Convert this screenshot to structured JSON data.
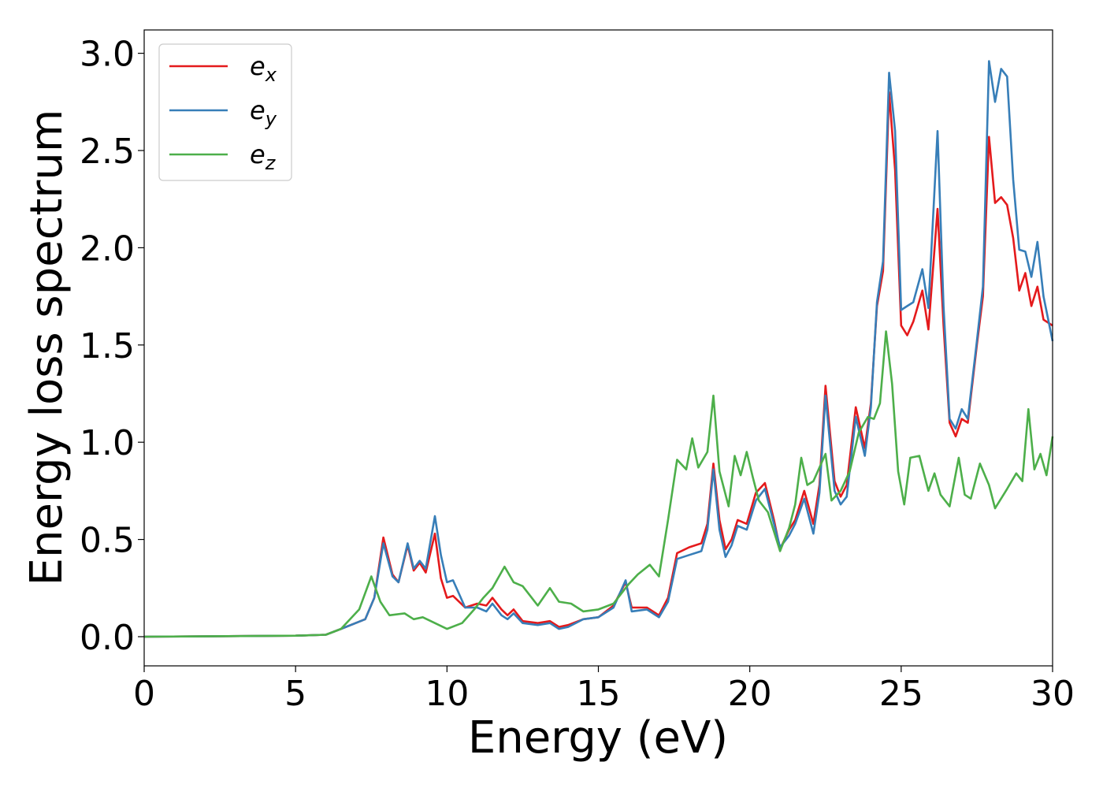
{
  "chart_data": {
    "type": "line",
    "title": "",
    "xlabel": "Energy (eV)",
    "ylabel": "Energy loss spectrum",
    "xlim": [
      0,
      30
    ],
    "ylim": [
      -0.15,
      3.12
    ],
    "xticks": [
      0,
      5,
      10,
      15,
      20,
      25,
      30
    ],
    "xtick_labels": [
      "0",
      "5",
      "10",
      "15",
      "20",
      "25",
      "30"
    ],
    "yticks": [
      0.0,
      0.5,
      1.0,
      1.5,
      2.0,
      2.5,
      3.0
    ],
    "ytick_labels": [
      "0.0",
      "0.5",
      "1.0",
      "1.5",
      "2.0",
      "2.5",
      "3.0"
    ],
    "grid": false,
    "legend_position": "top-left",
    "series": [
      {
        "name": "e_x",
        "legend_base": "e",
        "legend_sub": "x",
        "color": "#e41a1c",
        "points": [
          [
            0,
            0
          ],
          [
            5,
            0.005
          ],
          [
            6,
            0.01
          ],
          [
            6.5,
            0.04
          ],
          [
            7.3,
            0.09
          ],
          [
            7.6,
            0.2
          ],
          [
            7.9,
            0.51
          ],
          [
            8.2,
            0.32
          ],
          [
            8.4,
            0.28
          ],
          [
            8.7,
            0.47
          ],
          [
            8.9,
            0.34
          ],
          [
            9.1,
            0.38
          ],
          [
            9.3,
            0.33
          ],
          [
            9.6,
            0.53
          ],
          [
            9.8,
            0.3
          ],
          [
            10,
            0.2
          ],
          [
            10.2,
            0.21
          ],
          [
            10.6,
            0.15
          ],
          [
            11,
            0.17
          ],
          [
            11.3,
            0.16
          ],
          [
            11.5,
            0.2
          ],
          [
            11.8,
            0.14
          ],
          [
            12,
            0.11
          ],
          [
            12.2,
            0.14
          ],
          [
            12.5,
            0.08
          ],
          [
            13,
            0.07
          ],
          [
            13.4,
            0.08
          ],
          [
            13.7,
            0.05
          ],
          [
            14,
            0.06
          ],
          [
            14.5,
            0.09
          ],
          [
            15,
            0.1
          ],
          [
            15.5,
            0.16
          ],
          [
            15.9,
            0.28
          ],
          [
            16.1,
            0.15
          ],
          [
            16.6,
            0.15
          ],
          [
            17,
            0.11
          ],
          [
            17.3,
            0.2
          ],
          [
            17.6,
            0.43
          ],
          [
            18,
            0.46
          ],
          [
            18.4,
            0.48
          ],
          [
            18.6,
            0.58
          ],
          [
            18.8,
            0.89
          ],
          [
            19,
            0.6
          ],
          [
            19.2,
            0.45
          ],
          [
            19.4,
            0.5
          ],
          [
            19.6,
            0.6
          ],
          [
            19.9,
            0.58
          ],
          [
            20.2,
            0.74
          ],
          [
            20.5,
            0.79
          ],
          [
            20.8,
            0.6
          ],
          [
            21,
            0.45
          ],
          [
            21.3,
            0.55
          ],
          [
            21.5,
            0.6
          ],
          [
            21.8,
            0.75
          ],
          [
            22.1,
            0.58
          ],
          [
            22.3,
            0.78
          ],
          [
            22.5,
            1.29
          ],
          [
            22.8,
            0.8
          ],
          [
            23,
            0.72
          ],
          [
            23.2,
            0.78
          ],
          [
            23.5,
            1.18
          ],
          [
            23.8,
            0.97
          ],
          [
            24,
            1.2
          ],
          [
            24.2,
            1.7
          ],
          [
            24.4,
            1.88
          ],
          [
            24.6,
            2.8
          ],
          [
            24.8,
            2.4
          ],
          [
            25,
            1.6
          ],
          [
            25.2,
            1.55
          ],
          [
            25.4,
            1.62
          ],
          [
            25.7,
            1.78
          ],
          [
            25.9,
            1.58
          ],
          [
            26.2,
            2.2
          ],
          [
            26.4,
            1.6
          ],
          [
            26.6,
            1.1
          ],
          [
            26.8,
            1.03
          ],
          [
            27,
            1.12
          ],
          [
            27.2,
            1.1
          ],
          [
            27.5,
            1.5
          ],
          [
            27.7,
            1.75
          ],
          [
            27.9,
            2.57
          ],
          [
            28.1,
            2.23
          ],
          [
            28.3,
            2.26
          ],
          [
            28.5,
            2.22
          ],
          [
            28.7,
            2.05
          ],
          [
            28.9,
            1.78
          ],
          [
            29.1,
            1.87
          ],
          [
            29.3,
            1.7
          ],
          [
            29.5,
            1.8
          ],
          [
            29.7,
            1.63
          ],
          [
            30,
            1.6
          ]
        ]
      },
      {
        "name": "e_y",
        "legend_base": "e",
        "legend_sub": "y",
        "color": "#377eb8",
        "points": [
          [
            0,
            0
          ],
          [
            5,
            0.005
          ],
          [
            6,
            0.01
          ],
          [
            6.5,
            0.04
          ],
          [
            7.3,
            0.09
          ],
          [
            7.6,
            0.2
          ],
          [
            7.9,
            0.48
          ],
          [
            8.2,
            0.31
          ],
          [
            8.4,
            0.28
          ],
          [
            8.7,
            0.48
          ],
          [
            8.9,
            0.35
          ],
          [
            9.1,
            0.39
          ],
          [
            9.3,
            0.35
          ],
          [
            9.6,
            0.62
          ],
          [
            9.8,
            0.42
          ],
          [
            10,
            0.28
          ],
          [
            10.2,
            0.29
          ],
          [
            10.6,
            0.15
          ],
          [
            11,
            0.15
          ],
          [
            11.3,
            0.13
          ],
          [
            11.5,
            0.17
          ],
          [
            11.8,
            0.11
          ],
          [
            12,
            0.09
          ],
          [
            12.2,
            0.12
          ],
          [
            12.5,
            0.07
          ],
          [
            13,
            0.06
          ],
          [
            13.4,
            0.07
          ],
          [
            13.7,
            0.04
          ],
          [
            14,
            0.05
          ],
          [
            14.5,
            0.09
          ],
          [
            15,
            0.1
          ],
          [
            15.5,
            0.15
          ],
          [
            15.9,
            0.29
          ],
          [
            16.1,
            0.13
          ],
          [
            16.6,
            0.14
          ],
          [
            17,
            0.1
          ],
          [
            17.3,
            0.18
          ],
          [
            17.6,
            0.4
          ],
          [
            18,
            0.42
          ],
          [
            18.4,
            0.44
          ],
          [
            18.6,
            0.55
          ],
          [
            18.8,
            0.86
          ],
          [
            19,
            0.55
          ],
          [
            19.2,
            0.41
          ],
          [
            19.4,
            0.47
          ],
          [
            19.6,
            0.57
          ],
          [
            19.9,
            0.55
          ],
          [
            20.2,
            0.7
          ],
          [
            20.5,
            0.76
          ],
          [
            20.8,
            0.58
          ],
          [
            21,
            0.46
          ],
          [
            21.3,
            0.52
          ],
          [
            21.5,
            0.58
          ],
          [
            21.8,
            0.71
          ],
          [
            22.1,
            0.53
          ],
          [
            22.3,
            0.74
          ],
          [
            22.5,
            1.24
          ],
          [
            22.8,
            0.75
          ],
          [
            23,
            0.68
          ],
          [
            23.2,
            0.72
          ],
          [
            23.5,
            1.13
          ],
          [
            23.8,
            0.93
          ],
          [
            24,
            1.18
          ],
          [
            24.2,
            1.72
          ],
          [
            24.4,
            1.93
          ],
          [
            24.6,
            2.9
          ],
          [
            24.8,
            2.6
          ],
          [
            25,
            1.68
          ],
          [
            25.2,
            1.7
          ],
          [
            25.4,
            1.72
          ],
          [
            25.7,
            1.89
          ],
          [
            25.9,
            1.69
          ],
          [
            26.2,
            2.6
          ],
          [
            26.4,
            1.7
          ],
          [
            26.6,
            1.12
          ],
          [
            26.8,
            1.07
          ],
          [
            27,
            1.17
          ],
          [
            27.2,
            1.12
          ],
          [
            27.5,
            1.52
          ],
          [
            27.7,
            1.8
          ],
          [
            27.9,
            2.96
          ],
          [
            28.1,
            2.75
          ],
          [
            28.3,
            2.92
          ],
          [
            28.5,
            2.88
          ],
          [
            28.7,
            2.35
          ],
          [
            28.9,
            1.99
          ],
          [
            29.1,
            1.98
          ],
          [
            29.3,
            1.85
          ],
          [
            29.5,
            2.03
          ],
          [
            29.7,
            1.75
          ],
          [
            30,
            1.52
          ]
        ]
      },
      {
        "name": "e_z",
        "legend_base": "e",
        "legend_sub": "z",
        "color": "#4daf4a",
        "points": [
          [
            0,
            0
          ],
          [
            5,
            0.005
          ],
          [
            6,
            0.01
          ],
          [
            6.5,
            0.04
          ],
          [
            7.1,
            0.14
          ],
          [
            7.5,
            0.31
          ],
          [
            7.8,
            0.18
          ],
          [
            8.1,
            0.11
          ],
          [
            8.6,
            0.12
          ],
          [
            8.9,
            0.09
          ],
          [
            9.2,
            0.1
          ],
          [
            9.6,
            0.07
          ],
          [
            10,
            0.04
          ],
          [
            10.5,
            0.07
          ],
          [
            10.9,
            0.14
          ],
          [
            11.2,
            0.2
          ],
          [
            11.5,
            0.25
          ],
          [
            11.9,
            0.36
          ],
          [
            12.2,
            0.28
          ],
          [
            12.5,
            0.26
          ],
          [
            12.8,
            0.2
          ],
          [
            13,
            0.16
          ],
          [
            13.4,
            0.25
          ],
          [
            13.7,
            0.18
          ],
          [
            14.1,
            0.17
          ],
          [
            14.5,
            0.13
          ],
          [
            15,
            0.14
          ],
          [
            15.5,
            0.17
          ],
          [
            16,
            0.27
          ],
          [
            16.3,
            0.32
          ],
          [
            16.7,
            0.37
          ],
          [
            17,
            0.31
          ],
          [
            17.3,
            0.6
          ],
          [
            17.6,
            0.91
          ],
          [
            17.9,
            0.86
          ],
          [
            18.1,
            1.02
          ],
          [
            18.3,
            0.87
          ],
          [
            18.6,
            0.95
          ],
          [
            18.8,
            1.24
          ],
          [
            19,
            0.85
          ],
          [
            19.3,
            0.67
          ],
          [
            19.5,
            0.93
          ],
          [
            19.7,
            0.83
          ],
          [
            19.9,
            0.95
          ],
          [
            20.1,
            0.82
          ],
          [
            20.3,
            0.7
          ],
          [
            20.6,
            0.64
          ],
          [
            21,
            0.44
          ],
          [
            21.3,
            0.56
          ],
          [
            21.5,
            0.68
          ],
          [
            21.7,
            0.92
          ],
          [
            21.9,
            0.78
          ],
          [
            22.1,
            0.8
          ],
          [
            22.3,
            0.87
          ],
          [
            22.5,
            0.94
          ],
          [
            22.7,
            0.7
          ],
          [
            23,
            0.75
          ],
          [
            23.3,
            0.85
          ],
          [
            23.6,
            1.05
          ],
          [
            23.9,
            1.13
          ],
          [
            24.1,
            1.12
          ],
          [
            24.3,
            1.2
          ],
          [
            24.5,
            1.57
          ],
          [
            24.7,
            1.3
          ],
          [
            24.9,
            0.85
          ],
          [
            25.1,
            0.68
          ],
          [
            25.3,
            0.92
          ],
          [
            25.6,
            0.93
          ],
          [
            25.9,
            0.75
          ],
          [
            26.1,
            0.84
          ],
          [
            26.3,
            0.73
          ],
          [
            26.6,
            0.67
          ],
          [
            26.9,
            0.92
          ],
          [
            27.1,
            0.73
          ],
          [
            27.3,
            0.71
          ],
          [
            27.6,
            0.89
          ],
          [
            27.9,
            0.78
          ],
          [
            28.1,
            0.66
          ],
          [
            28.5,
            0.76
          ],
          [
            28.8,
            0.84
          ],
          [
            29,
            0.8
          ],
          [
            29.2,
            1.17
          ],
          [
            29.4,
            0.86
          ],
          [
            29.6,
            0.94
          ],
          [
            29.8,
            0.83
          ],
          [
            30,
            1.03
          ]
        ]
      }
    ]
  }
}
